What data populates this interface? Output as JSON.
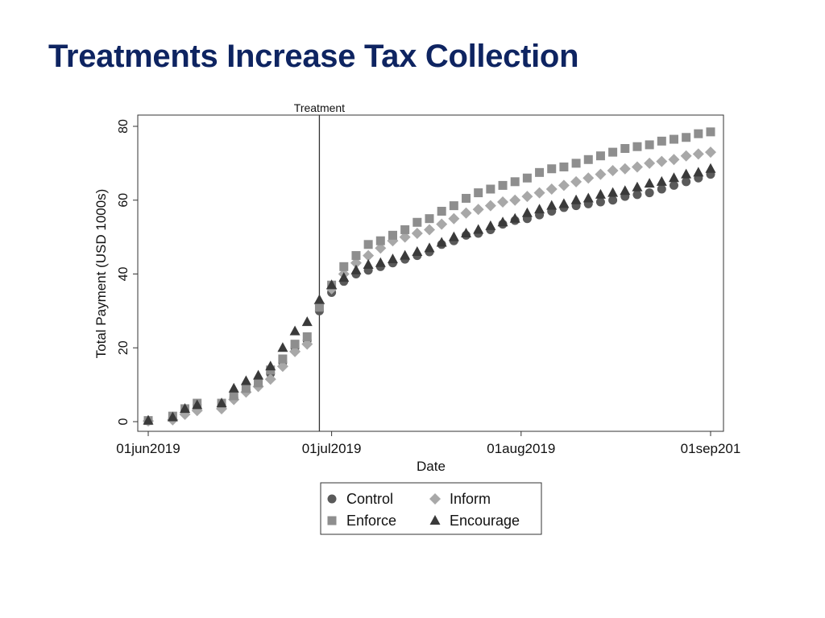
{
  "slide": {
    "title": "Treatments Increase Tax Collection"
  },
  "chart_data": {
    "type": "scatter",
    "title": "",
    "xlabel": "Date",
    "ylabel": "Total Payment (USD 1000s)",
    "xlim": [
      "2019-06-01",
      "2019-09-01"
    ],
    "ylim": [
      0,
      80
    ],
    "x_tick_labels": [
      "01jun2019",
      "01jul2019",
      "01aug2019",
      "01sep201"
    ],
    "y_tick_labels": [
      "0",
      "20",
      "40",
      "60",
      "80"
    ],
    "grid": false,
    "annotations": [
      {
        "label": "Treatment",
        "date": "2019-06-29",
        "type": "vertical-line"
      }
    ],
    "legend": {
      "position": "bottom",
      "entries": [
        "Control",
        "Inform",
        "Enforce",
        "Encourage"
      ]
    },
    "series": [
      {
        "name": "Control",
        "marker": "circle",
        "color": "#5a5a5a",
        "points": [
          [
            "2019-06-01",
            0.2
          ],
          [
            "2019-06-05",
            1.0
          ],
          [
            "2019-06-07",
            3.0
          ],
          [
            "2019-06-09",
            4.5
          ],
          [
            "2019-06-13",
            4.0
          ],
          [
            "2019-06-15",
            6.5
          ],
          [
            "2019-06-17",
            8.5
          ],
          [
            "2019-06-19",
            10.0
          ],
          [
            "2019-06-21",
            13.0
          ],
          [
            "2019-06-23",
            16.0
          ],
          [
            "2019-06-25",
            20.0
          ],
          [
            "2019-06-27",
            22.0
          ],
          [
            "2019-06-29",
            30.0
          ],
          [
            "2019-07-01",
            35.0
          ],
          [
            "2019-07-03",
            38.0
          ],
          [
            "2019-07-05",
            40.0
          ],
          [
            "2019-07-07",
            41.0
          ],
          [
            "2019-07-09",
            42.0
          ],
          [
            "2019-07-11",
            43.0
          ],
          [
            "2019-07-13",
            44.0
          ],
          [
            "2019-07-15",
            45.0
          ],
          [
            "2019-07-17",
            46.0
          ],
          [
            "2019-07-19",
            48.0
          ],
          [
            "2019-07-21",
            49.0
          ],
          [
            "2019-07-23",
            50.5
          ],
          [
            "2019-07-25",
            51.0
          ],
          [
            "2019-07-27",
            52.0
          ],
          [
            "2019-07-29",
            53.5
          ],
          [
            "2019-07-31",
            54.5
          ],
          [
            "2019-08-02",
            55.0
          ],
          [
            "2019-08-04",
            56.0
          ],
          [
            "2019-08-06",
            57.0
          ],
          [
            "2019-08-08",
            58.0
          ],
          [
            "2019-08-10",
            58.5
          ],
          [
            "2019-08-12",
            59.0
          ],
          [
            "2019-08-14",
            59.5
          ],
          [
            "2019-08-16",
            60.0
          ],
          [
            "2019-08-18",
            61.0
          ],
          [
            "2019-08-20",
            61.5
          ],
          [
            "2019-08-22",
            62.0
          ],
          [
            "2019-08-24",
            63.0
          ],
          [
            "2019-08-26",
            64.0
          ],
          [
            "2019-08-28",
            65.0
          ],
          [
            "2019-08-30",
            66.0
          ],
          [
            "2019-09-01",
            67.0
          ]
        ]
      },
      {
        "name": "Inform",
        "marker": "diamond",
        "color": "#a8a8a8",
        "points": [
          [
            "2019-06-01",
            0.2
          ],
          [
            "2019-06-05",
            0.5
          ],
          [
            "2019-06-07",
            2.0
          ],
          [
            "2019-06-09",
            3.0
          ],
          [
            "2019-06-13",
            3.5
          ],
          [
            "2019-06-15",
            6.0
          ],
          [
            "2019-06-17",
            8.0
          ],
          [
            "2019-06-19",
            9.5
          ],
          [
            "2019-06-21",
            11.5
          ],
          [
            "2019-06-23",
            15.0
          ],
          [
            "2019-06-25",
            19.0
          ],
          [
            "2019-06-27",
            21.0
          ],
          [
            "2019-06-29",
            32.0
          ],
          [
            "2019-07-01",
            36.0
          ],
          [
            "2019-07-03",
            40.0
          ],
          [
            "2019-07-05",
            43.0
          ],
          [
            "2019-07-07",
            45.0
          ],
          [
            "2019-07-09",
            47.0
          ],
          [
            "2019-07-11",
            49.0
          ],
          [
            "2019-07-13",
            50.0
          ],
          [
            "2019-07-15",
            51.0
          ],
          [
            "2019-07-17",
            52.0
          ],
          [
            "2019-07-19",
            53.5
          ],
          [
            "2019-07-21",
            55.0
          ],
          [
            "2019-07-23",
            56.5
          ],
          [
            "2019-07-25",
            57.5
          ],
          [
            "2019-07-27",
            58.5
          ],
          [
            "2019-07-29",
            59.5
          ],
          [
            "2019-07-31",
            60.0
          ],
          [
            "2019-08-02",
            61.0
          ],
          [
            "2019-08-04",
            62.0
          ],
          [
            "2019-08-06",
            63.0
          ],
          [
            "2019-08-08",
            64.0
          ],
          [
            "2019-08-10",
            65.0
          ],
          [
            "2019-08-12",
            66.0
          ],
          [
            "2019-08-14",
            67.0
          ],
          [
            "2019-08-16",
            68.0
          ],
          [
            "2019-08-18",
            68.5
          ],
          [
            "2019-08-20",
            69.0
          ],
          [
            "2019-08-22",
            70.0
          ],
          [
            "2019-08-24",
            70.5
          ],
          [
            "2019-08-26",
            71.0
          ],
          [
            "2019-08-28",
            72.0
          ],
          [
            "2019-08-30",
            72.5
          ],
          [
            "2019-09-01",
            73.0
          ]
        ]
      },
      {
        "name": "Enforce",
        "marker": "square",
        "color": "#8e8e8e",
        "points": [
          [
            "2019-06-01",
            0.3
          ],
          [
            "2019-06-05",
            1.5
          ],
          [
            "2019-06-07",
            3.5
          ],
          [
            "2019-06-09",
            5.0
          ],
          [
            "2019-06-13",
            5.0
          ],
          [
            "2019-06-15",
            7.0
          ],
          [
            "2019-06-17",
            9.0
          ],
          [
            "2019-06-19",
            10.5
          ],
          [
            "2019-06-21",
            14.0
          ],
          [
            "2019-06-23",
            17.0
          ],
          [
            "2019-06-25",
            21.0
          ],
          [
            "2019-06-27",
            23.0
          ],
          [
            "2019-06-29",
            31.0
          ],
          [
            "2019-07-01",
            37.0
          ],
          [
            "2019-07-03",
            42.0
          ],
          [
            "2019-07-05",
            45.0
          ],
          [
            "2019-07-07",
            48.0
          ],
          [
            "2019-07-09",
            49.0
          ],
          [
            "2019-07-11",
            50.5
          ],
          [
            "2019-07-13",
            52.0
          ],
          [
            "2019-07-15",
            54.0
          ],
          [
            "2019-07-17",
            55.0
          ],
          [
            "2019-07-19",
            57.0
          ],
          [
            "2019-07-21",
            58.5
          ],
          [
            "2019-07-23",
            60.5
          ],
          [
            "2019-07-25",
            62.0
          ],
          [
            "2019-07-27",
            63.0
          ],
          [
            "2019-07-29",
            64.0
          ],
          [
            "2019-07-31",
            65.0
          ],
          [
            "2019-08-02",
            66.0
          ],
          [
            "2019-08-04",
            67.5
          ],
          [
            "2019-08-06",
            68.5
          ],
          [
            "2019-08-08",
            69.0
          ],
          [
            "2019-08-10",
            70.0
          ],
          [
            "2019-08-12",
            71.0
          ],
          [
            "2019-08-14",
            72.0
          ],
          [
            "2019-08-16",
            73.0
          ],
          [
            "2019-08-18",
            74.0
          ],
          [
            "2019-08-20",
            74.5
          ],
          [
            "2019-08-22",
            75.0
          ],
          [
            "2019-08-24",
            76.0
          ],
          [
            "2019-08-26",
            76.5
          ],
          [
            "2019-08-28",
            77.0
          ],
          [
            "2019-08-30",
            78.0
          ],
          [
            "2019-09-01",
            78.5
          ]
        ]
      },
      {
        "name": "Encourage",
        "marker": "triangle",
        "color": "#3a3a3a",
        "points": [
          [
            "2019-06-01",
            0.3
          ],
          [
            "2019-06-05",
            1.2
          ],
          [
            "2019-06-07",
            3.5
          ],
          [
            "2019-06-09",
            4.5
          ],
          [
            "2019-06-13",
            5.0
          ],
          [
            "2019-06-15",
            9.0
          ],
          [
            "2019-06-17",
            11.0
          ],
          [
            "2019-06-19",
            12.5
          ],
          [
            "2019-06-21",
            15.0
          ],
          [
            "2019-06-23",
            20.0
          ],
          [
            "2019-06-25",
            24.5
          ],
          [
            "2019-06-27",
            27.0
          ],
          [
            "2019-06-29",
            33.0
          ],
          [
            "2019-07-01",
            37.0
          ],
          [
            "2019-07-03",
            39.0
          ],
          [
            "2019-07-05",
            41.0
          ],
          [
            "2019-07-07",
            42.5
          ],
          [
            "2019-07-09",
            43.0
          ],
          [
            "2019-07-11",
            44.0
          ],
          [
            "2019-07-13",
            45.0
          ],
          [
            "2019-07-15",
            46.0
          ],
          [
            "2019-07-17",
            47.0
          ],
          [
            "2019-07-19",
            48.5
          ],
          [
            "2019-07-21",
            50.0
          ],
          [
            "2019-07-23",
            51.0
          ],
          [
            "2019-07-25",
            52.0
          ],
          [
            "2019-07-27",
            53.0
          ],
          [
            "2019-07-29",
            54.0
          ],
          [
            "2019-07-31",
            55.0
          ],
          [
            "2019-08-02",
            56.5
          ],
          [
            "2019-08-04",
            57.5
          ],
          [
            "2019-08-06",
            58.5
          ],
          [
            "2019-08-08",
            59.0
          ],
          [
            "2019-08-10",
            60.0
          ],
          [
            "2019-08-12",
            60.5
          ],
          [
            "2019-08-14",
            61.5
          ],
          [
            "2019-08-16",
            62.0
          ],
          [
            "2019-08-18",
            62.5
          ],
          [
            "2019-08-20",
            63.5
          ],
          [
            "2019-08-22",
            64.5
          ],
          [
            "2019-08-24",
            65.0
          ],
          [
            "2019-08-26",
            66.0
          ],
          [
            "2019-08-28",
            67.0
          ],
          [
            "2019-08-30",
            67.5
          ],
          [
            "2019-09-01",
            68.5
          ]
        ]
      }
    ]
  }
}
